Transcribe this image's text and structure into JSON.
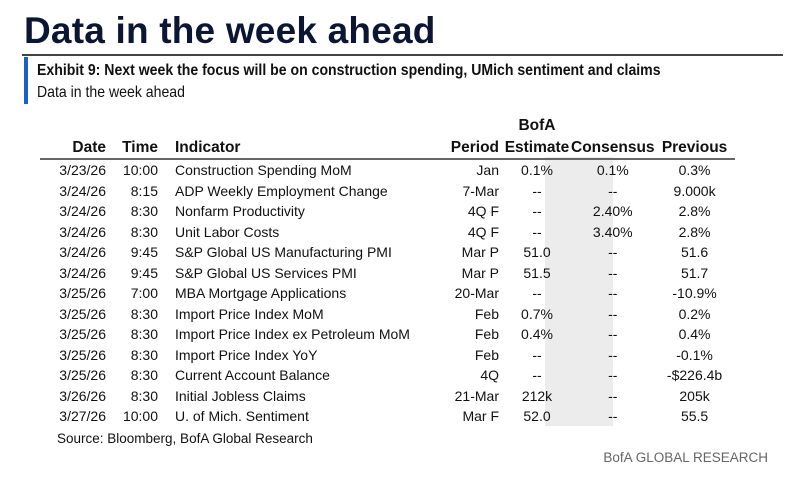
{
  "title": "Data in the week ahead",
  "exhibit": {
    "heading": "Exhibit 9: Next week the focus will be on construction spending, UMich sentiment and claims",
    "subheading": "Data in the week ahead"
  },
  "table": {
    "headers": {
      "date": "Date",
      "time": "Time",
      "indicator": "Indicator",
      "period": "Period",
      "estimate_top": "BofA",
      "estimate": "Estimate",
      "consensus": "Consensus",
      "previous": "Previous"
    },
    "rows": [
      {
        "date": "3/23/26",
        "time": "10:00",
        "indicator": "Construction Spending MoM",
        "period": "Jan",
        "estimate": "0.1%",
        "consensus": "0.1%",
        "previous": "0.3%"
      },
      {
        "date": "3/24/26",
        "time": "8:15",
        "indicator": "ADP Weekly Employment Change",
        "period": "7-Mar",
        "estimate": "--",
        "consensus": "--",
        "previous": "9.000k"
      },
      {
        "date": "3/24/26",
        "time": "8:30",
        "indicator": "Nonfarm Productivity",
        "period": "4Q F",
        "estimate": "--",
        "consensus": "2.40%",
        "previous": "2.8%"
      },
      {
        "date": "3/24/26",
        "time": "8:30",
        "indicator": "Unit Labor Costs",
        "period": "4Q F",
        "estimate": "--",
        "consensus": "3.40%",
        "previous": "2.8%"
      },
      {
        "date": "3/24/26",
        "time": "9:45",
        "indicator": "S&P Global US Manufacturing PMI",
        "period": "Mar P",
        "estimate": "51.0",
        "consensus": "--",
        "previous": "51.6"
      },
      {
        "date": "3/24/26",
        "time": "9:45",
        "indicator": "S&P Global US Services PMI",
        "period": "Mar P",
        "estimate": "51.5",
        "consensus": "--",
        "previous": "51.7"
      },
      {
        "date": "3/25/26",
        "time": "7:00",
        "indicator": "MBA Mortgage Applications",
        "period": "20-Mar",
        "estimate": "--",
        "consensus": "--",
        "previous": "-10.9%"
      },
      {
        "date": "3/25/26",
        "time": "8:30",
        "indicator": "Import Price Index MoM",
        "period": "Feb",
        "estimate": "0.7%",
        "consensus": "--",
        "previous": "0.2%"
      },
      {
        "date": "3/25/26",
        "time": "8:30",
        "indicator": "Import Price Index ex Petroleum MoM",
        "period": "Feb",
        "estimate": "0.4%",
        "consensus": "--",
        "previous": "0.4%"
      },
      {
        "date": "3/25/26",
        "time": "8:30",
        "indicator": "Import Price Index YoY",
        "period": "Feb",
        "estimate": "--",
        "consensus": "--",
        "previous": "-0.1%"
      },
      {
        "date": "3/25/26",
        "time": "8:30",
        "indicator": "Current Account Balance",
        "period": "4Q",
        "estimate": "--",
        "consensus": "--",
        "previous": "-$226.4b"
      },
      {
        "date": "3/26/26",
        "time": "8:30",
        "indicator": "Initial Jobless Claims",
        "period": "21-Mar",
        "estimate": "212k",
        "consensus": "--",
        "previous": "205k"
      },
      {
        "date": "3/27/26",
        "time": "10:00",
        "indicator": "U. of Mich. Sentiment",
        "period": "Mar F",
        "estimate": "52.0",
        "consensus": "--",
        "previous": "55.5"
      }
    ]
  },
  "source": "Source: Bloomberg, BofA Global Research",
  "brand": "BofA GLOBAL RESEARCH",
  "colors": {
    "title": "#0b1634",
    "accent_bar": "#1a5fc8",
    "estimate_shade": "#ececec"
  }
}
